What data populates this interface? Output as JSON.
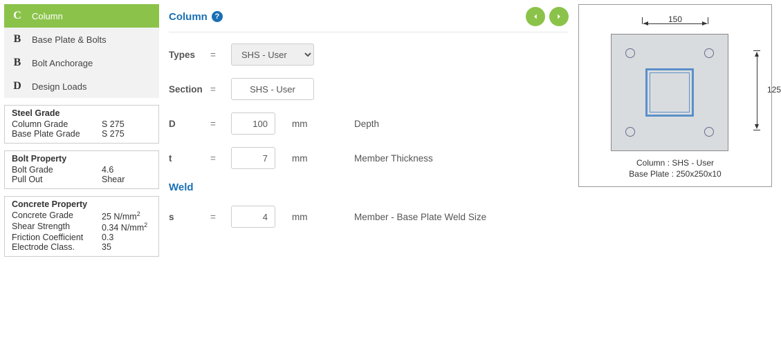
{
  "nav": {
    "items": [
      {
        "letter": "C",
        "label": "Column",
        "active": true
      },
      {
        "letter": "B",
        "label": "Base Plate & Bolts",
        "active": false
      },
      {
        "letter": "B",
        "label": "Bolt Anchorage",
        "active": false
      },
      {
        "letter": "D",
        "label": "Design Loads",
        "active": false
      }
    ]
  },
  "steel_grade": {
    "title": "Steel Grade",
    "rows": [
      {
        "k": "Column Grade",
        "v": "S 275"
      },
      {
        "k": "Base Plate Grade",
        "v": "S 275"
      }
    ]
  },
  "bolt_property": {
    "title": "Bolt Property",
    "rows": [
      {
        "k": "Bolt Grade",
        "v": "4.6"
      },
      {
        "k": "Pull Out",
        "v": "Shear"
      }
    ]
  },
  "concrete_property": {
    "title": "Concrete Property",
    "rows": [
      {
        "k": "Concrete Grade",
        "v_html": "25 N/mm<sup>2</sup>"
      },
      {
        "k": "Shear Strength",
        "v_html": "0.34 N/mm<sup>2</sup>"
      },
      {
        "k": "Friction Coefficient",
        "v": "0.3"
      },
      {
        "k": "Electrode Class.",
        "v": "35"
      }
    ]
  },
  "column": {
    "header": "Column",
    "types_label": "Types",
    "types_value": "SHS - User",
    "section_label": "Section",
    "section_value": "SHS - User",
    "d_label": "D",
    "d_value": "100",
    "d_unit": "mm",
    "d_desc": "Depth",
    "t_label": "t",
    "t_value": "7",
    "t_unit": "mm",
    "t_desc": "Member Thickness"
  },
  "weld": {
    "header": "Weld",
    "s_label": "s",
    "s_value": "4",
    "s_unit": "mm",
    "s_desc": "Member - Base Plate Weld Size"
  },
  "diagram": {
    "dim_top": "150",
    "dim_right": "125",
    "caption1": "Column : SHS - User",
    "caption2": "Base Plate : 250x250x10",
    "colors": {
      "plate_fill": "#d9dcdf",
      "plate_border": "#888888",
      "shs_stroke": "#5b8fc9",
      "bolt_stroke": "#6a6a8d"
    }
  }
}
